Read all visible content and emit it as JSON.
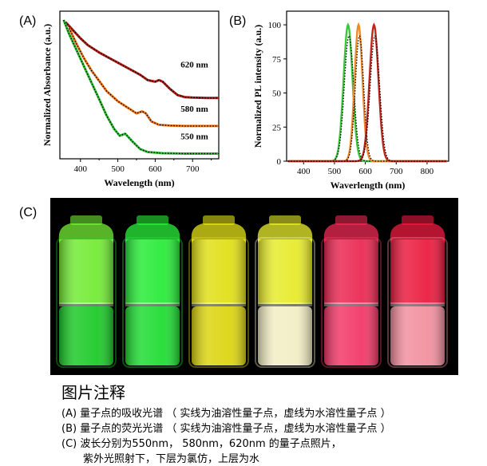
{
  "panel_a": {
    "label": "(A)",
    "chart_data": {
      "type": "line",
      "title": "",
      "xlabel": "Wavelength (nm)",
      "ylabel": "Normalized Absorbance (a.u.)",
      "xlim": [
        345,
        770
      ],
      "x_ticks": [
        400,
        500,
        600,
        700
      ],
      "series": [
        {
          "name": "620 nm",
          "color": "#b01e14",
          "x": [
            360,
            380,
            400,
            420,
            450,
            480,
            510,
            540,
            560,
            580,
            600,
            610,
            620,
            640,
            660,
            680,
            700,
            740,
            770
          ],
          "y": [
            3.25,
            3.05,
            2.85,
            2.68,
            2.5,
            2.35,
            2.2,
            2.05,
            1.95,
            1.82,
            1.78,
            1.82,
            1.78,
            1.6,
            1.45,
            1.4,
            1.39,
            1.38,
            1.38
          ]
        },
        {
          "name": "580 nm",
          "color": "#f07a1e",
          "x": [
            370,
            390,
            410,
            430,
            450,
            470,
            500,
            530,
            550,
            565,
            575,
            590,
            610,
            640,
            680,
            720,
            770
          ],
          "y": [
            3.1,
            2.7,
            2.35,
            2.05,
            1.8,
            1.55,
            1.3,
            1.12,
            1.0,
            1.05,
            1.0,
            0.8,
            0.72,
            0.7,
            0.69,
            0.69,
            0.69
          ]
        },
        {
          "name": "550 nm",
          "color": "#2fc236",
          "x": [
            355,
            370,
            390,
            410,
            430,
            450,
            470,
            490,
            505,
            520,
            540,
            560,
            580,
            620,
            680,
            770
          ],
          "y": [
            3.3,
            2.95,
            2.55,
            2.15,
            1.75,
            1.35,
            0.95,
            0.62,
            0.45,
            0.5,
            0.3,
            0.12,
            0.05,
            0.02,
            0.01,
            0.01
          ]
        }
      ],
      "annotations": [
        "620 nm",
        "580 nm",
        "550 nm"
      ],
      "legend": "none"
    }
  },
  "panel_b": {
    "label": "(B)",
    "chart_data": {
      "type": "line",
      "title": "",
      "xlabel": "Waverlength (nm)",
      "ylabel": "Normalized PL intensity (a.u.)",
      "xlim": [
        345,
        870
      ],
      "ylim": [
        0,
        110
      ],
      "x_ticks": [
        400,
        500,
        600,
        700,
        800
      ],
      "y_ticks": [
        0,
        25,
        50,
        75,
        100
      ],
      "series": [
        {
          "name": "550 nm",
          "color": "#3cc83c",
          "peak": 544,
          "fwhm": 34,
          "max": 100
        },
        {
          "name": "580 nm",
          "color": "#f08a28",
          "peak": 578,
          "fwhm": 30,
          "max": 100
        },
        {
          "name": "620 nm",
          "color": "#c0281e",
          "peak": 628,
          "fwhm": 34,
          "max": 100
        }
      ],
      "legend": "none"
    }
  },
  "panel_c": {
    "label": "(C)",
    "vials": [
      {
        "name": "550nm-oil",
        "top_color": "#7dff3a",
        "bottom_color": "#1fd52a"
      },
      {
        "name": "550nm-water",
        "top_color": "#2dff3e",
        "bottom_color": "#22e836"
      },
      {
        "name": "580nm-oil",
        "top_color": "#f4f21a",
        "bottom_color": "#e8e012"
      },
      {
        "name": "580nm-water",
        "top_color": "#fbff30",
        "bottom_color": "#fffbd0"
      },
      {
        "name": "620nm-oil",
        "top_color": "#ff2d5a",
        "bottom_color": "#ff3c6e"
      },
      {
        "name": "620nm-water",
        "top_color": "#ff1e44",
        "bottom_color": "#ff98a8"
      }
    ]
  },
  "caption": {
    "title": "图片注释",
    "line_a": "(A) 量子点的吸收光谱 （ 实线为油溶性量子点，虚线为水溶性量子点 ）",
    "line_b": "(B) 量子点的荧光光谱 （ 实线为油溶性量子点，虚线为水溶性量子点 ）",
    "line_c1": "(C) 波长分别为550nm， 580nm，620nm 的量子点照片，",
    "line_c2": "紫外光照射下，下层为氯仿，上层为水"
  }
}
